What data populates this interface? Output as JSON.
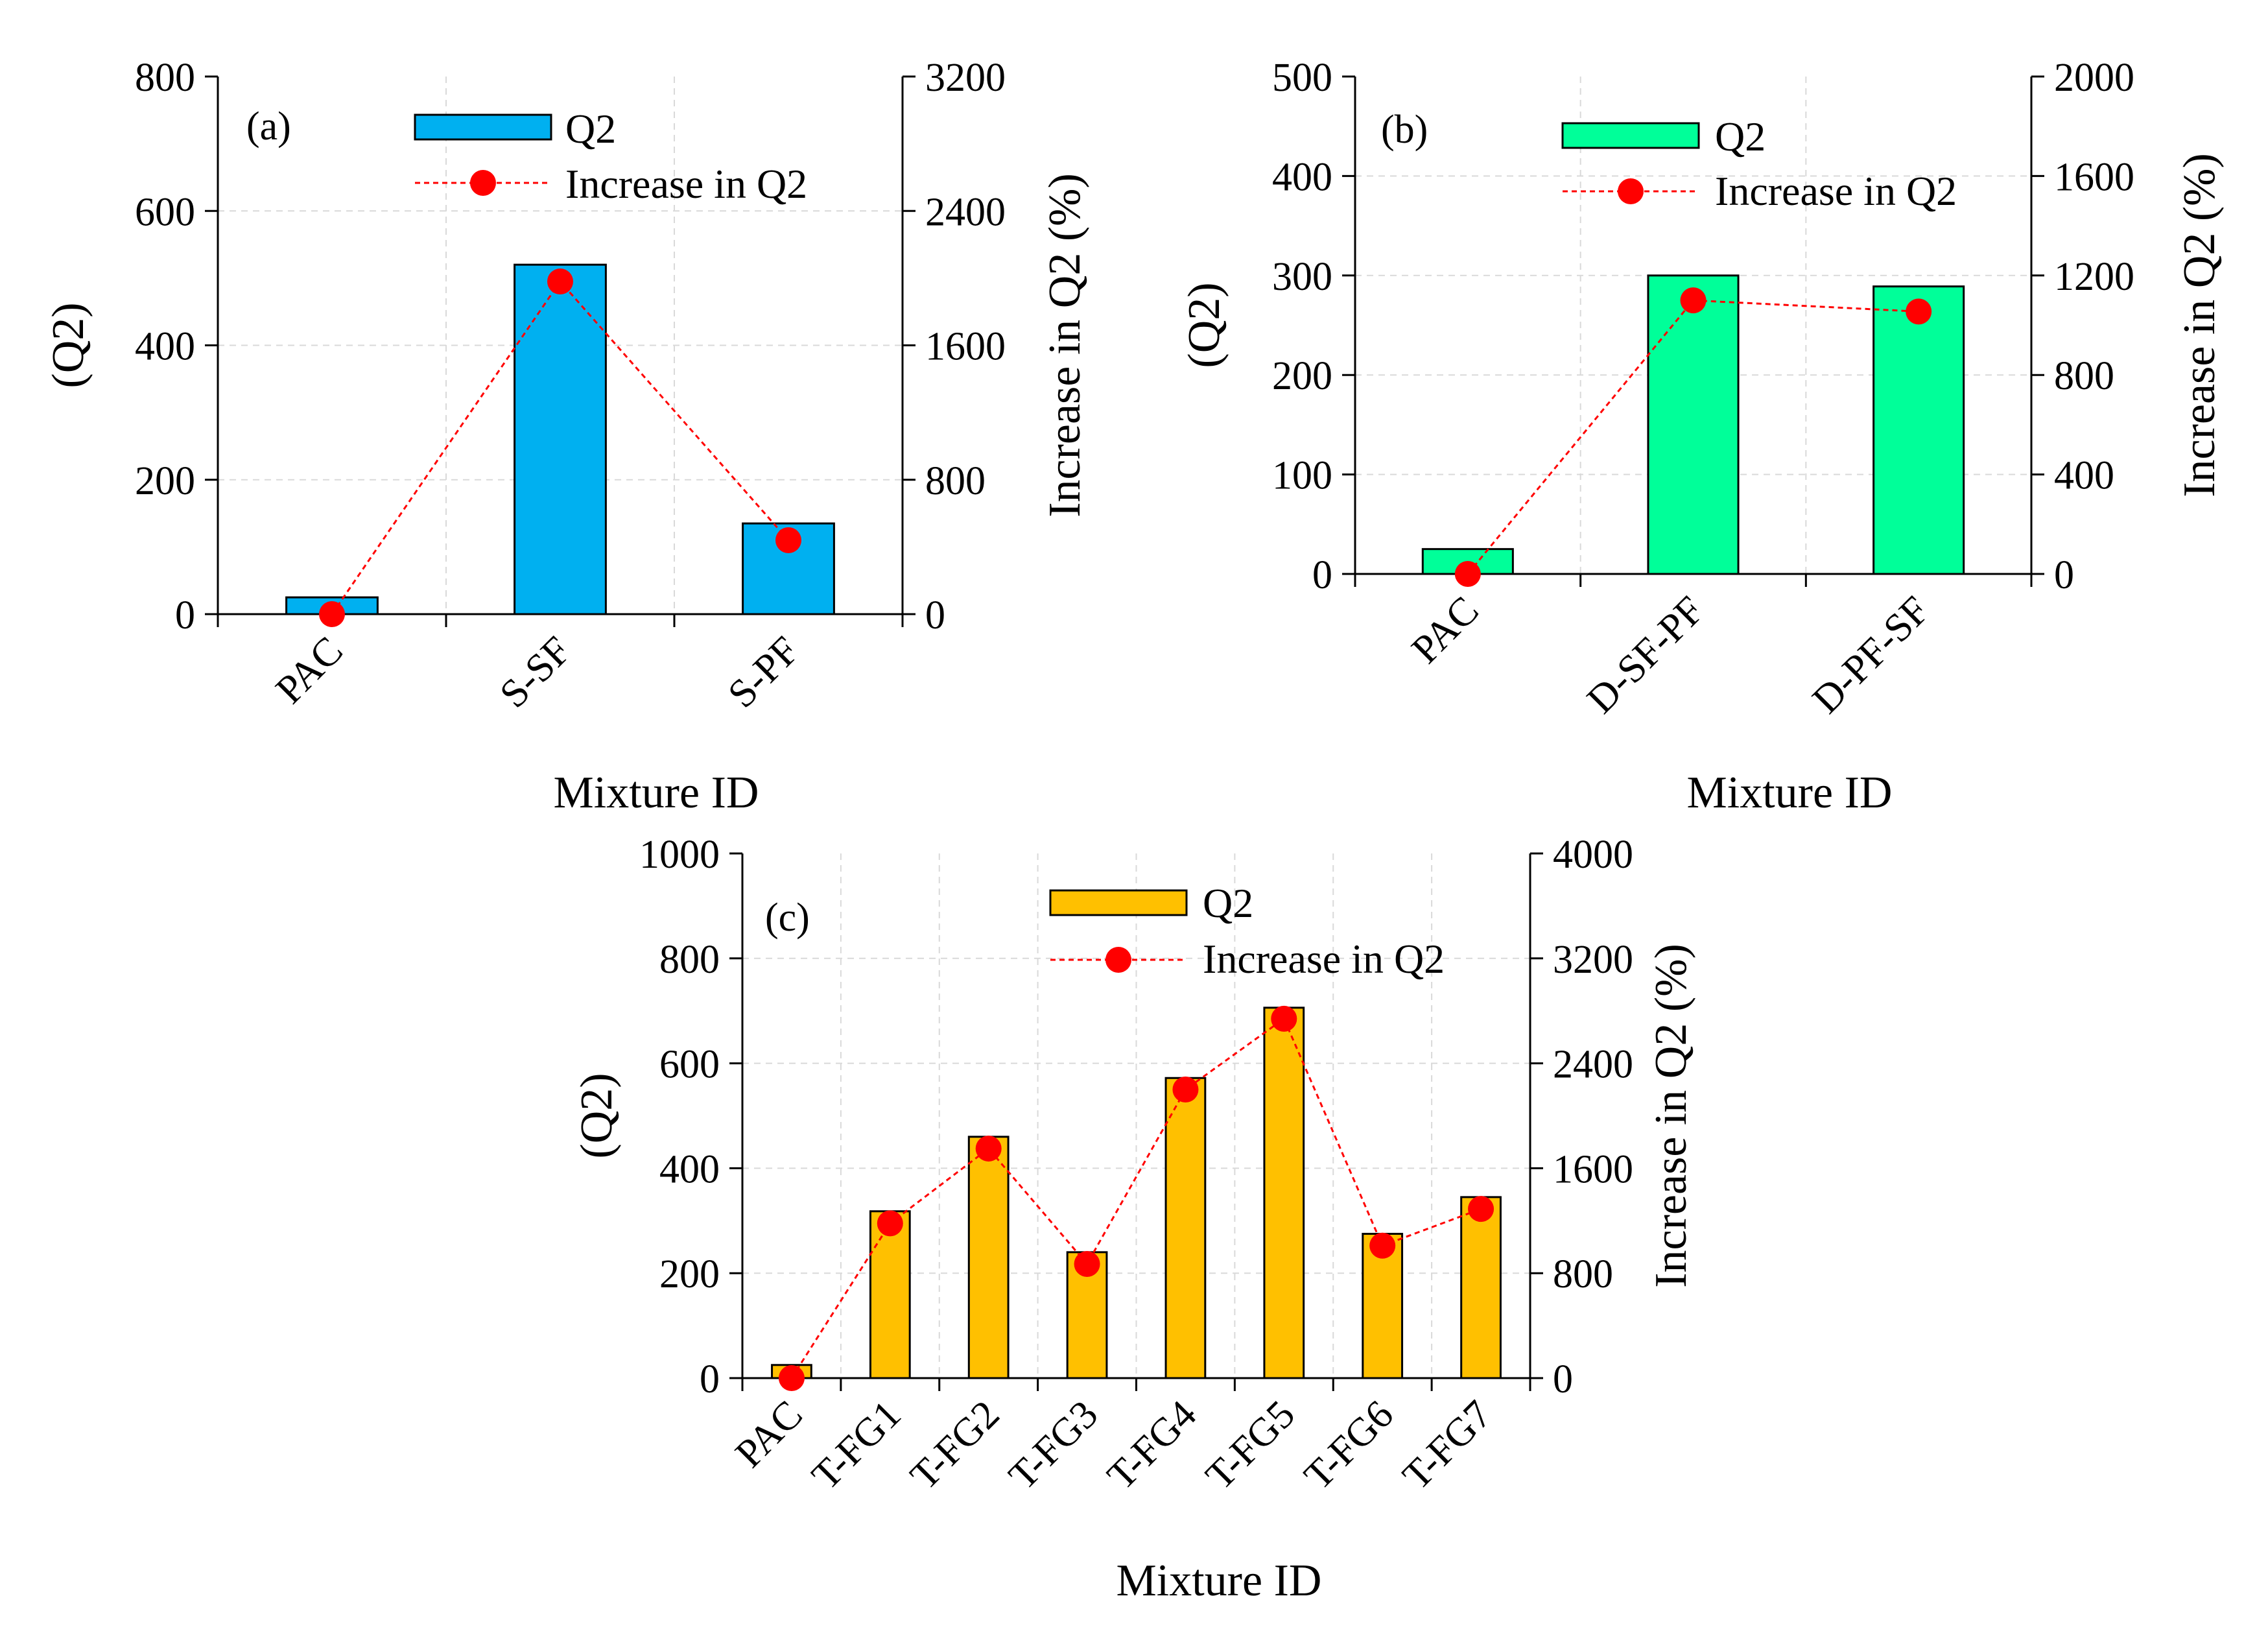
{
  "chart_data": [
    {
      "type": "bar",
      "panel_label": "(a)",
      "categories": [
        "PAC",
        "S-SF",
        "S-PF"
      ],
      "series": [
        {
          "name": "Q2",
          "kind": "bar",
          "axis": "left",
          "values": [
            25,
            520,
            135
          ]
        },
        {
          "name": "Increase in Q2",
          "kind": "line",
          "axis": "right",
          "values": [
            0,
            1980,
            440
          ]
        }
      ],
      "xlabel": "Mixture ID",
      "ylabel": "(Q2)",
      "y2label": "Increase in Q2 (%)",
      "ylim": [
        0,
        800
      ],
      "y2lim": [
        0,
        3200
      ],
      "yticks": [
        "0",
        "200",
        "400",
        "600",
        "800"
      ],
      "y2ticks": [
        "0",
        "800",
        "1600",
        "2400",
        "3200"
      ],
      "bar_color": "#00b0f0",
      "line_color": "#ff0000",
      "grid": true,
      "legend": {
        "position": "top-center",
        "items": [
          "Q2",
          "Increase in Q2"
        ]
      }
    },
    {
      "type": "bar",
      "panel_label": "(b)",
      "categories": [
        "PAC",
        "D-SF-PF",
        "D-PF-SF"
      ],
      "series": [
        {
          "name": "Q2",
          "kind": "bar",
          "axis": "left",
          "values": [
            25,
            300,
            289
          ]
        },
        {
          "name": "Increase in Q2",
          "kind": "line",
          "axis": "right",
          "values": [
            0,
            1100,
            1055
          ]
        }
      ],
      "xlabel": "Mixture ID",
      "ylabel": "(Q2)",
      "y2label": "Increase in Q2 (%)",
      "ylim": [
        0,
        500
      ],
      "y2lim": [
        0,
        2000
      ],
      "yticks": [
        "0",
        "100",
        "200",
        "300",
        "400",
        "500"
      ],
      "y2ticks": [
        "0",
        "400",
        "800",
        "1200",
        "1600",
        "2000"
      ],
      "bar_color": "#00ff99",
      "line_color": "#ff0000",
      "grid": true,
      "legend": {
        "position": "top-center",
        "items": [
          "Q2",
          "Increase in Q2"
        ]
      }
    },
    {
      "type": "bar",
      "panel_label": "(c)",
      "categories": [
        "PAC",
        "T-FG1",
        "T-FG2",
        "T-FG3",
        "T-FG4",
        "T-FG5",
        "T-FG6",
        "T-FG7"
      ],
      "series": [
        {
          "name": "Q2",
          "kind": "bar",
          "axis": "left",
          "values": [
            25,
            318,
            460,
            240,
            572,
            706,
            275,
            345
          ]
        },
        {
          "name": "Increase in Q2",
          "kind": "line",
          "axis": "right",
          "values": [
            0,
            1180,
            1750,
            870,
            2200,
            2740,
            1010,
            1290
          ]
        }
      ],
      "xlabel": "Mixture ID",
      "ylabel": "(Q2)",
      "y2label": "Increase in Q2 (%)",
      "ylim": [
        0,
        1000
      ],
      "y2lim": [
        0,
        4000
      ],
      "yticks": [
        "0",
        "200",
        "400",
        "600",
        "800",
        "1000"
      ],
      "y2ticks": [
        "0",
        "800",
        "1600",
        "2400",
        "3200",
        "4000"
      ],
      "bar_color": "#ffc000",
      "line_color": "#ff0000",
      "grid": true,
      "legend": {
        "position": "top-right",
        "items": [
          "Q2",
          "Increase in Q2"
        ]
      }
    }
  ]
}
